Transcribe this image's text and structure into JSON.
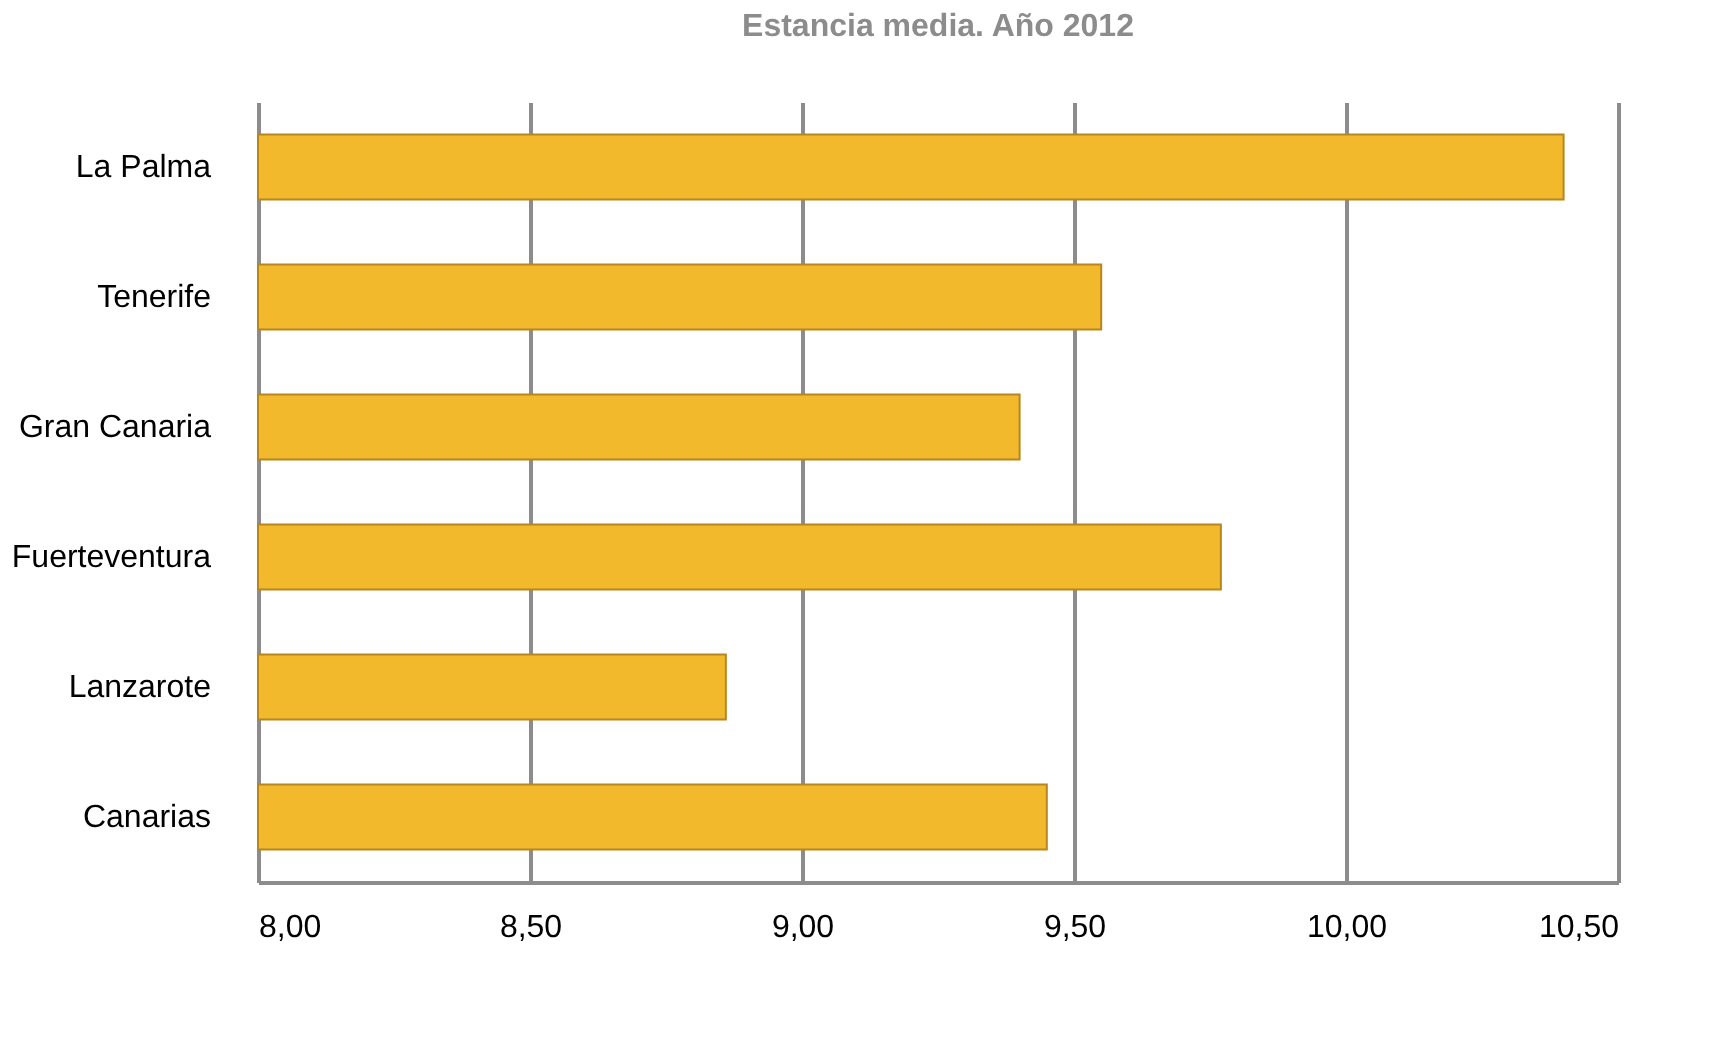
{
  "chart_data": {
    "type": "bar",
    "orientation": "horizontal",
    "title": "Estancia media. Año 2012",
    "categories": [
      "La Palma",
      "Tenerife",
      "Gran Canaria",
      "Fuerteventura",
      "Lanzarote",
      "Canarias"
    ],
    "values": [
      10.4,
      9.55,
      9.4,
      9.77,
      8.86,
      9.45
    ],
    "color": "#f2b92c",
    "xlim": [
      8,
      10.5
    ],
    "xticks": [
      {
        "value": 8,
        "label": "8,00"
      },
      {
        "value": 8.5,
        "label": "8,50"
      },
      {
        "value": 9,
        "label": "9,00"
      },
      {
        "value": 9.5,
        "label": "9,50"
      },
      {
        "value": 10,
        "label": "10,00"
      },
      {
        "value": 10.5,
        "label": "10,50"
      }
    ],
    "grid": "x"
  }
}
